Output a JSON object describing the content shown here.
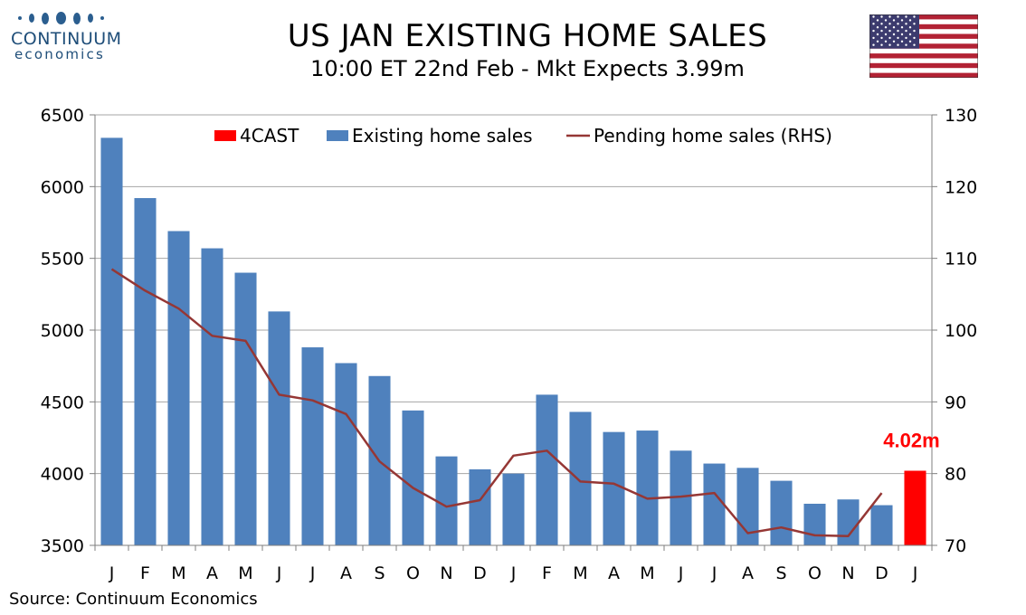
{
  "title": "US JAN EXISTING HOME SALES",
  "subtitle": "10:00 ET 22nd Feb - Mkt Expects 3.99m",
  "source": "Source: Continuum Economics",
  "logo": {
    "name": "CONTINUUM",
    "sub": "economics",
    "color": "#1f4e79"
  },
  "flag": {
    "country": "US",
    "icon": "us-flag-icon"
  },
  "chart_data": {
    "type": "bar",
    "categories": [
      "J",
      "F",
      "M",
      "A",
      "M",
      "J",
      "J",
      "A",
      "S",
      "O",
      "N",
      "D",
      "J",
      "F",
      "M",
      "A",
      "M",
      "J",
      "J",
      "A",
      "S",
      "O",
      "N",
      "D",
      "J"
    ],
    "series": [
      {
        "name": "4CAST",
        "type": "bar",
        "color": "#ff0000",
        "axis": "left",
        "values": [
          null,
          null,
          null,
          null,
          null,
          null,
          null,
          null,
          null,
          null,
          null,
          null,
          null,
          null,
          null,
          null,
          null,
          null,
          null,
          null,
          null,
          null,
          null,
          null,
          4020
        ]
      },
      {
        "name": "Existing home sales",
        "type": "bar",
        "color": "#4f81bd",
        "axis": "left",
        "values": [
          6340,
          5920,
          5690,
          5570,
          5400,
          5130,
          4880,
          4770,
          4680,
          4440,
          4120,
          4030,
          4000,
          4550,
          4430,
          4290,
          4300,
          4160,
          4070,
          4040,
          3950,
          3790,
          3820,
          3780,
          null
        ]
      },
      {
        "name": "Pending home sales (RHS)",
        "type": "line",
        "color": "#953735",
        "axis": "right",
        "values": [
          108.5,
          105.5,
          103.0,
          99.2,
          98.5,
          91.0,
          90.2,
          88.3,
          81.7,
          78.0,
          75.4,
          76.3,
          82.5,
          83.2,
          78.9,
          78.6,
          76.5,
          76.8,
          77.3,
          71.7,
          72.5,
          71.4,
          71.3,
          77.3,
          null
        ]
      }
    ],
    "y_left": {
      "min": 3500,
      "max": 6500,
      "ticks": [
        3500,
        4000,
        4500,
        5000,
        5500,
        6000,
        6500
      ]
    },
    "y_right": {
      "min": 70,
      "max": 130,
      "ticks": [
        70,
        80,
        90,
        100,
        110,
        120,
        130
      ]
    },
    "annotation": {
      "text": "4.02m",
      "category_index": 24,
      "color": "#ff0000"
    },
    "legend": [
      "4CAST",
      "Existing home sales",
      "Pending home sales (RHS)"
    ],
    "legend_placement": "top",
    "grid": true
  }
}
